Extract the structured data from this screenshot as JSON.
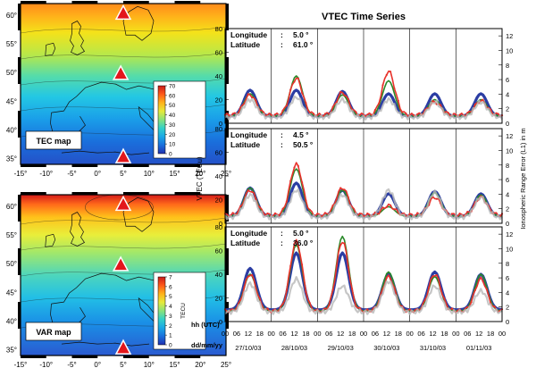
{
  "maps": [
    {
      "label": "TEC map",
      "colorbar_ticks": [
        "70",
        "60",
        "50",
        "40",
        "30",
        "20",
        "10",
        "0"
      ],
      "colorbar_range": [
        0,
        70
      ],
      "lon_ticks": [
        "-15°",
        "-10°",
        "-5°",
        "0°",
        "5°",
        "10°",
        "15°",
        "20°",
        "25°"
      ],
      "lat_ticks": [
        "60°",
        "55°",
        "50°",
        "45°",
        "40°",
        "35°"
      ],
      "stations": [
        {
          "lon": 5.0,
          "lat": 61.0
        },
        {
          "lon": 4.5,
          "lat": 50.5
        },
        {
          "lon": 5.0,
          "lat": 36.0
        }
      ]
    },
    {
      "label": "VAR map",
      "colorbar_unit": "TECU",
      "colorbar_ticks": [
        "7",
        "6",
        "5",
        "4",
        "3",
        "2",
        "1",
        "0"
      ],
      "colorbar_range": [
        0,
        7
      ],
      "lon_ticks": [
        "-15°",
        "-10°",
        "-5°",
        "0°",
        "5°",
        "10°",
        "15°",
        "20°",
        "25°"
      ],
      "lat_ticks": [
        "60°",
        "55°",
        "50°",
        "45°",
        "40°",
        "35°"
      ],
      "stations": [
        {
          "lon": 5.0,
          "lat": 61.0
        },
        {
          "lon": 4.5,
          "lat": 50.5
        },
        {
          "lon": 5.0,
          "lat": 36.0
        }
      ]
    }
  ],
  "chart_data": {
    "type": "line",
    "title": "VTEC Time Series",
    "ylabel_left": "VTEC (TECu)",
    "ylabel_right": "Ionospheric Range Error (L1) in m",
    "yticks_left": [
      "0",
      "20",
      "40",
      "60",
      "80"
    ],
    "yticks_right": [
      "0",
      "2",
      "4",
      "6",
      "8",
      "10",
      "12"
    ],
    "ylim_left": [
      0,
      80
    ],
    "ylim_right": [
      0,
      13
    ],
    "hour_row_label": "hh (UTC)",
    "date_row_label": "dd/mm/yy",
    "hour_ticks": [
      "00",
      "06",
      "12",
      "18"
    ],
    "last_hour_tick": "00",
    "dates": [
      "27/10/03",
      "28/10/03",
      "29/10/03",
      "30/10/03",
      "31/10/03",
      "01/11/03"
    ],
    "lon_label": "Longitude",
    "lat_label": "Latitude",
    "panels": [
      {
        "longitude": "5.0 °",
        "latitude": "61.0 °",
        "series": [
          {
            "color": "#2b3da3",
            "peaks": [
              28,
              28,
              27,
              25,
              25,
              25
            ],
            "night": 6
          },
          {
            "color": "#2a8a2a",
            "peaks": [
              25,
              40,
              24,
              36,
              20,
              20
            ],
            "night": 6
          },
          {
            "color": "#e8322b",
            "peaks": [
              24,
              38,
              26,
              44,
              18,
              19
            ],
            "night": 7
          },
          {
            "color": "#b8b8b8",
            "peaks": [
              20,
              22,
              20,
              20,
              18,
              18
            ],
            "night": 5
          }
        ]
      },
      {
        "longitude": "4.5 °",
        "latitude": "50.5 °",
        "series": [
          {
            "color": "#2b3da3",
            "peaks": [
              30,
              34,
              28,
              25,
              27,
              25
            ],
            "night": 6
          },
          {
            "color": "#2a8a2a",
            "peaks": [
              30,
              46,
              28,
              14,
              26,
              24
            ],
            "night": 6
          },
          {
            "color": "#e8322b",
            "peaks": [
              28,
              50,
              30,
              15,
              22,
              22
            ],
            "night": 7
          },
          {
            "color": "#b8b8b8",
            "peaks": [
              24,
              28,
              24,
              28,
              26,
              22
            ],
            "night": 5
          }
        ]
      },
      {
        "longitude": "5.0 °",
        "latitude": "36.0 °",
        "series": [
          {
            "color": "#2b3da3",
            "peaks": [
              45,
              58,
              58,
              40,
              42,
              40
            ],
            "night": 10
          },
          {
            "color": "#2a8a2a",
            "peaks": [
              40,
              65,
              72,
              42,
              38,
              40
            ],
            "night": 9
          },
          {
            "color": "#e8322b",
            "peaks": [
              40,
              68,
              68,
              38,
              40,
              36
            ],
            "night": 9
          },
          {
            "color": "#b8b8b8",
            "peaks": [
              32,
              36,
              30,
              34,
              30,
              26
            ],
            "night": 8
          }
        ]
      }
    ]
  }
}
